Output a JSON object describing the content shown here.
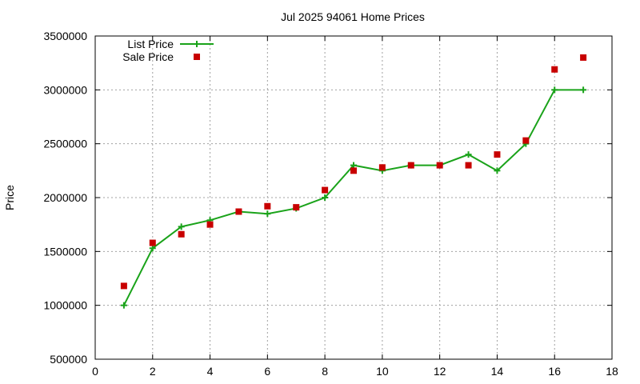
{
  "chart_data": {
    "type": "line",
    "title": "Jul 2025 94061 Home Prices",
    "xlabel": "",
    "ylabel": "Price",
    "xlim": [
      0,
      18
    ],
    "ylim": [
      500000,
      3500000
    ],
    "xticks": [
      0,
      2,
      4,
      6,
      8,
      10,
      12,
      14,
      16,
      18
    ],
    "yticks": [
      500000,
      1000000,
      1500000,
      2000000,
      2500000,
      3000000,
      3500000
    ],
    "grid": true,
    "legend_position": "top-left",
    "series": [
      {
        "name": "List Price",
        "style": "lines+points",
        "color": "#1aa31a",
        "x": [
          1,
          2,
          3,
          4,
          5,
          6,
          7,
          8,
          9,
          10,
          11,
          12,
          13,
          14,
          15,
          16,
          17
        ],
        "y": [
          1000000,
          1530000,
          1730000,
          1790000,
          1870000,
          1850000,
          1900000,
          2000000,
          2300000,
          2250000,
          2300000,
          2300000,
          2400000,
          2250000,
          2500000,
          3000000,
          3000000
        ]
      },
      {
        "name": "Sale Price",
        "style": "points",
        "color": "#c80000",
        "x": [
          1,
          2,
          3,
          4,
          5,
          6,
          7,
          8,
          9,
          10,
          11,
          12,
          13,
          14,
          15,
          16,
          17
        ],
        "y": [
          1180000,
          1580000,
          1660000,
          1750000,
          1870000,
          1920000,
          1910000,
          2070000,
          2250000,
          2280000,
          2300000,
          2300000,
          2300000,
          2400000,
          2530000,
          3190000,
          3300000
        ]
      }
    ]
  }
}
